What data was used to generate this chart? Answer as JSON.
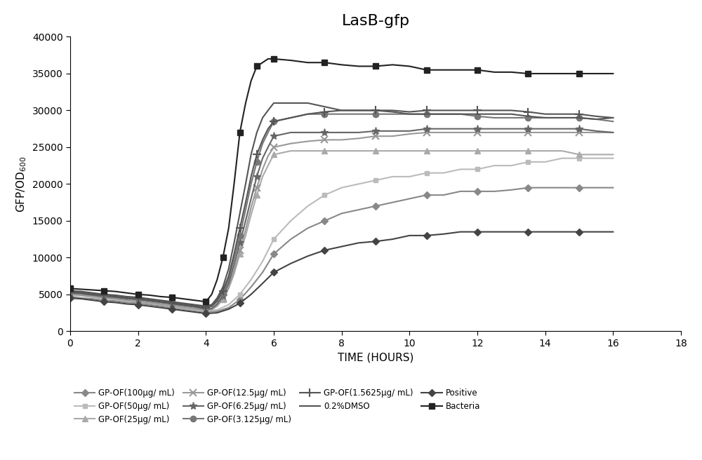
{
  "title": "LasB-gfp",
  "xlabel": "TIME (HOURS)",
  "xlim": [
    0,
    18
  ],
  "ylim": [
    0,
    40000
  ],
  "xticks": [
    0,
    2,
    4,
    6,
    8,
    10,
    12,
    14,
    16,
    18
  ],
  "yticks": [
    0,
    5000,
    10000,
    15000,
    20000,
    25000,
    30000,
    35000,
    40000
  ],
  "series": {
    "Bacteria": {
      "color": "#222222",
      "marker": "s",
      "markersize": 6,
      "linewidth": 1.5,
      "x": [
        0,
        0.33,
        0.67,
        1,
        1.33,
        1.67,
        2,
        2.33,
        2.67,
        3,
        3.33,
        3.67,
        4,
        4.17,
        4.33,
        4.5,
        4.67,
        4.83,
        5,
        5.17,
        5.33,
        5.5,
        5.67,
        5.83,
        6,
        6.5,
        7,
        7.5,
        8,
        8.5,
        9,
        9.5,
        10,
        10.5,
        11,
        11.5,
        12,
        12.5,
        13,
        13.5,
        14,
        14.5,
        15,
        15.5,
        16
      ],
      "y": [
        5800,
        5700,
        5600,
        5500,
        5400,
        5200,
        5000,
        4900,
        4700,
        4600,
        4400,
        4200,
        4000,
        5000,
        7000,
        10000,
        14000,
        20000,
        27000,
        31000,
        34000,
        36000,
        36500,
        37000,
        37000,
        36800,
        36500,
        36500,
        36200,
        36000,
        36000,
        36200,
        36000,
        35500,
        35500,
        35500,
        35500,
        35200,
        35200,
        35000,
        35000,
        35000,
        35000,
        35000,
        35000
      ]
    },
    "0.2%DMSO": {
      "color": "#555555",
      "marker": "none",
      "markersize": 0,
      "linewidth": 1.5,
      "x": [
        0,
        0.33,
        0.67,
        1,
        1.33,
        1.67,
        2,
        2.33,
        2.67,
        3,
        3.33,
        3.67,
        4,
        4.17,
        4.33,
        4.5,
        4.67,
        4.83,
        5,
        5.17,
        5.33,
        5.5,
        5.67,
        5.83,
        6,
        6.5,
        7,
        7.5,
        8,
        8.5,
        9,
        9.5,
        10,
        10.5,
        11,
        11.5,
        12,
        12.5,
        13,
        13.5,
        14,
        14.5,
        15,
        15.5,
        16
      ],
      "y": [
        5500,
        5400,
        5200,
        5000,
        4900,
        4700,
        4600,
        4400,
        4200,
        4000,
        3800,
        3600,
        3400,
        3600,
        4500,
        6000,
        8500,
        12000,
        16000,
        20000,
        24000,
        27000,
        29000,
        30000,
        31000,
        31000,
        31000,
        30500,
        30000,
        30000,
        30000,
        29800,
        29500,
        29500,
        29500,
        29500,
        29500,
        29500,
        29500,
        29200,
        29000,
        29000,
        29000,
        28800,
        29000
      ]
    },
    "GP-OF(1.5625μg/ mL)": {
      "color": "#555555",
      "marker": "+",
      "markersize": 8,
      "markeredgewidth": 1.5,
      "linewidth": 1.5,
      "x": [
        0,
        0.33,
        0.67,
        1,
        1.33,
        1.67,
        2,
        2.33,
        2.67,
        3,
        3.33,
        3.67,
        4,
        4.17,
        4.33,
        4.5,
        4.67,
        4.83,
        5,
        5.17,
        5.33,
        5.5,
        5.67,
        5.83,
        6,
        6.5,
        7,
        7.5,
        8,
        8.5,
        9,
        9.5,
        10,
        10.5,
        11,
        11.5,
        12,
        12.5,
        13,
        13.5,
        14,
        14.5,
        15,
        15.5,
        16
      ],
      "y": [
        5300,
        5200,
        5000,
        4900,
        4700,
        4500,
        4400,
        4200,
        4000,
        3800,
        3600,
        3400,
        3200,
        3400,
        4200,
        5500,
        7500,
        10500,
        14000,
        17500,
        21000,
        24000,
        26000,
        27500,
        28500,
        29000,
        29500,
        29800,
        30000,
        30000,
        30000,
        30000,
        29800,
        30000,
        30000,
        30000,
        30000,
        30000,
        30000,
        29800,
        29500,
        29500,
        29500,
        29200,
        29000
      ]
    },
    "GP-OF(3.125μg/ mL)": {
      "color": "#777777",
      "marker": "o",
      "markersize": 6,
      "linewidth": 1.5,
      "x": [
        0,
        0.33,
        0.67,
        1,
        1.33,
        1.67,
        2,
        2.33,
        2.67,
        3,
        3.33,
        3.67,
        4,
        4.17,
        4.33,
        4.5,
        4.67,
        4.83,
        5,
        5.17,
        5.33,
        5.5,
        5.67,
        5.83,
        6,
        6.5,
        7,
        7.5,
        8,
        8.5,
        9,
        9.5,
        10,
        10.5,
        11,
        11.5,
        12,
        12.5,
        13,
        13.5,
        14,
        14.5,
        15,
        15.5,
        16
      ],
      "y": [
        5400,
        5300,
        5100,
        4900,
        4800,
        4600,
        4500,
        4300,
        4100,
        3900,
        3700,
        3500,
        3200,
        3400,
        4000,
        5200,
        7000,
        9800,
        13000,
        16500,
        20000,
        23000,
        25500,
        27000,
        28500,
        29000,
        29500,
        29500,
        29500,
        29500,
        29500,
        29500,
        29500,
        29500,
        29500,
        29500,
        29200,
        29000,
        29000,
        29000,
        29000,
        29000,
        29000,
        28800,
        28500
      ]
    },
    "GP-OF(6.25μg/ mL)": {
      "color": "#666666",
      "marker": "*",
      "markersize": 8,
      "linewidth": 1.5,
      "x": [
        0,
        0.33,
        0.67,
        1,
        1.33,
        1.67,
        2,
        2.33,
        2.67,
        3,
        3.33,
        3.67,
        4,
        4.17,
        4.33,
        4.5,
        4.67,
        4.83,
        5,
        5.17,
        5.33,
        5.5,
        5.67,
        5.83,
        6,
        6.5,
        7,
        7.5,
        8,
        8.5,
        9,
        9.5,
        10,
        10.5,
        11,
        11.5,
        12,
        12.5,
        13,
        13.5,
        14,
        14.5,
        15,
        15.5,
        16
      ],
      "y": [
        5200,
        5100,
        4900,
        4700,
        4600,
        4400,
        4300,
        4100,
        3900,
        3700,
        3500,
        3300,
        3000,
        3100,
        3700,
        4800,
        6500,
        9000,
        12000,
        15000,
        18000,
        21000,
        23500,
        25000,
        26500,
        27000,
        27000,
        27000,
        27000,
        27000,
        27200,
        27200,
        27200,
        27500,
        27500,
        27500,
        27500,
        27500,
        27500,
        27500,
        27500,
        27500,
        27500,
        27200,
        27000
      ]
    },
    "GP-OF(12.5μg/ mL)": {
      "color": "#999999",
      "marker": "x",
      "markersize": 7,
      "markeredgewidth": 1.5,
      "linewidth": 1.5,
      "x": [
        0,
        0.33,
        0.67,
        1,
        1.33,
        1.67,
        2,
        2.33,
        2.67,
        3,
        3.33,
        3.67,
        4,
        4.17,
        4.33,
        4.5,
        4.67,
        4.83,
        5,
        5.17,
        5.33,
        5.5,
        5.67,
        5.83,
        6,
        6.5,
        7,
        7.5,
        8,
        8.5,
        9,
        9.5,
        10,
        10.5,
        11,
        11.5,
        12,
        12.5,
        13,
        13.5,
        14,
        14.5,
        15,
        15.5,
        16
      ],
      "y": [
        5100,
        4900,
        4800,
        4600,
        4400,
        4200,
        4100,
        3900,
        3700,
        3500,
        3300,
        3100,
        2900,
        3000,
        3500,
        4500,
        6000,
        8200,
        11000,
        13800,
        16800,
        19500,
        22000,
        23800,
        25000,
        25500,
        25800,
        26000,
        26000,
        26200,
        26500,
        26500,
        26800,
        27000,
        27000,
        27000,
        27000,
        27000,
        27000,
        27000,
        27000,
        27000,
        27000,
        27000,
        27000
      ]
    },
    "GP-OF(25μg/ mL)": {
      "color": "#aaaaaa",
      "marker": "^",
      "markersize": 6,
      "linewidth": 1.5,
      "x": [
        0,
        0.33,
        0.67,
        1,
        1.33,
        1.67,
        2,
        2.33,
        2.67,
        3,
        3.33,
        3.67,
        4,
        4.17,
        4.33,
        4.5,
        4.67,
        4.83,
        5,
        5.17,
        5.33,
        5.5,
        5.67,
        5.83,
        6,
        6.5,
        7,
        7.5,
        8,
        8.5,
        9,
        9.5,
        10,
        10.5,
        11,
        11.5,
        12,
        12.5,
        13,
        13.5,
        14,
        14.5,
        15,
        15.5,
        16
      ],
      "y": [
        5000,
        4900,
        4700,
        4500,
        4400,
        4200,
        4000,
        3800,
        3600,
        3400,
        3200,
        3000,
        2800,
        2900,
        3400,
        4300,
        5800,
        7800,
        10500,
        13000,
        15800,
        18500,
        21000,
        22500,
        24000,
        24500,
        24500,
        24500,
        24500,
        24500,
        24500,
        24500,
        24500,
        24500,
        24500,
        24500,
        24500,
        24500,
        24500,
        24500,
        24500,
        24500,
        24000,
        24000,
        24000
      ]
    },
    "GP-OF(50μg/ mL)": {
      "color": "#bbbbbb",
      "marker": "s",
      "markersize": 5,
      "linewidth": 1.5,
      "x": [
        0,
        0.33,
        0.67,
        1,
        1.33,
        1.67,
        2,
        2.33,
        2.67,
        3,
        3.33,
        3.67,
        4,
        4.33,
        4.67,
        5,
        5.33,
        5.67,
        6,
        6.5,
        7,
        7.5,
        8,
        8.5,
        9,
        9.5,
        10,
        10.5,
        11,
        11.5,
        12,
        12.5,
        13,
        13.5,
        14,
        14.5,
        15,
        15.5,
        16
      ],
      "y": [
        4900,
        4800,
        4600,
        4400,
        4300,
        4100,
        4000,
        3800,
        3600,
        3300,
        3100,
        2900,
        2700,
        2900,
        3600,
        5000,
        7000,
        9500,
        12500,
        15000,
        17000,
        18500,
        19500,
        20000,
        20500,
        21000,
        21000,
        21500,
        21500,
        22000,
        22000,
        22500,
        22500,
        23000,
        23000,
        23500,
        23500,
        23500,
        23500
      ]
    },
    "GP-OF(100μg/ mL)": {
      "color": "#888888",
      "marker": "D",
      "markersize": 5,
      "linewidth": 1.5,
      "x": [
        0,
        0.33,
        0.67,
        1,
        1.33,
        1.67,
        2,
        2.33,
        2.67,
        3,
        3.33,
        3.67,
        4,
        4.33,
        4.67,
        5,
        5.33,
        5.67,
        6,
        6.5,
        7,
        7.5,
        8,
        8.5,
        9,
        9.5,
        10,
        10.5,
        11,
        11.5,
        12,
        12.5,
        13,
        13.5,
        14,
        14.5,
        15,
        15.5,
        16
      ],
      "y": [
        4700,
        4500,
        4400,
        4200,
        4100,
        3900,
        3800,
        3600,
        3400,
        3200,
        3000,
        2800,
        2600,
        2700,
        3200,
        4300,
        6000,
        8000,
        10500,
        12500,
        14000,
        15000,
        16000,
        16500,
        17000,
        17500,
        18000,
        18500,
        18500,
        19000,
        19000,
        19000,
        19200,
        19500,
        19500,
        19500,
        19500,
        19500,
        19500
      ]
    },
    "Positive": {
      "color": "#444444",
      "marker": "D",
      "markersize": 5,
      "linewidth": 1.5,
      "x": [
        0,
        0.33,
        0.67,
        1,
        1.33,
        1.67,
        2,
        2.33,
        2.67,
        3,
        3.33,
        3.67,
        4,
        4.33,
        4.67,
        5,
        5.33,
        5.67,
        6,
        6.5,
        7,
        7.5,
        8,
        8.5,
        9,
        9.5,
        10,
        10.5,
        11,
        11.5,
        12,
        12.5,
        13,
        13.5,
        14,
        14.5,
        15,
        15.5,
        16
      ],
      "y": [
        4500,
        4400,
        4200,
        4000,
        3900,
        3700,
        3600,
        3400,
        3200,
        3000,
        2800,
        2600,
        2400,
        2500,
        3000,
        3800,
        5000,
        6500,
        8000,
        9200,
        10200,
        11000,
        11500,
        12000,
        12200,
        12500,
        13000,
        13000,
        13200,
        13500,
        13500,
        13500,
        13500,
        13500,
        13500,
        13500,
        13500,
        13500,
        13500
      ]
    }
  },
  "legend_order": [
    "GP-OF(100μg/ mL)",
    "GP-OF(50μg/ mL)",
    "GP-OF(25μg/ mL)",
    "GP-OF(12.5μg/ mL)",
    "GP-OF(6.25μg/ mL)",
    "GP-OF(3.125μg/ mL)",
    "GP-OF(1.5625μg/ mL)",
    "0.2%DMSO",
    "Positive",
    "Bacteria"
  ]
}
